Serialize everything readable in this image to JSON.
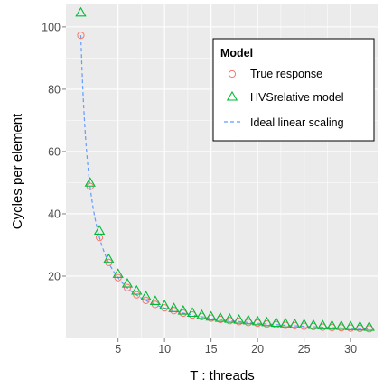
{
  "chart_data": {
    "type": "scatter",
    "xlabel": "T : threads",
    "ylabel": "Cycles per element",
    "xlim": [
      -0.6,
      33.0
    ],
    "ylim": [
      0,
      107.5
    ],
    "xticks": [
      5,
      10,
      15,
      20,
      25,
      30
    ],
    "yticks": [
      20,
      40,
      60,
      80,
      100
    ],
    "grid": true,
    "legend": {
      "title": "Model",
      "placement": "top-right",
      "entries": [
        "True response",
        "HVSrelative model",
        "Ideal linear scaling"
      ]
    },
    "colors": {
      "panel_background": "#ebebeb",
      "grid": "#ffffff",
      "true_response": "#f8766d",
      "hvs_model": "#00ba38",
      "ideal_linear": "#619cff"
    },
    "series": [
      {
        "name": "True response",
        "marker": "circle",
        "x": [
          1,
          2,
          3,
          4,
          5,
          6,
          7,
          8,
          9,
          10,
          11,
          12,
          13,
          14,
          15,
          16,
          17,
          18,
          19,
          20,
          21,
          22,
          23,
          24,
          25,
          26,
          27,
          28,
          29,
          30,
          31,
          32
        ],
        "y": [
          97.3,
          48.8,
          32.4,
          24.4,
          19.5,
          16.3,
          14.0,
          12.2,
          10.9,
          9.8,
          8.9,
          8.1,
          7.5,
          7.0,
          6.5,
          6.1,
          5.7,
          5.4,
          5.1,
          4.9,
          4.6,
          4.4,
          4.2,
          4.1,
          3.9,
          3.8,
          3.6,
          3.5,
          3.4,
          3.3,
          3.2,
          3.1
        ]
      },
      {
        "name": "HVSrelative model",
        "marker": "triangle",
        "x": [
          1,
          2,
          3,
          4,
          5,
          6,
          7,
          8,
          9,
          10,
          11,
          12,
          13,
          14,
          15,
          16,
          17,
          18,
          19,
          20,
          21,
          22,
          23,
          24,
          25,
          26,
          27,
          28,
          29,
          30,
          31,
          32
        ],
        "y": [
          104.6,
          50.0,
          34.6,
          25.5,
          20.7,
          17.6,
          15.3,
          13.5,
          12.0,
          10.6,
          9.7,
          8.9,
          8.2,
          7.5,
          7.0,
          6.6,
          6.3,
          6.0,
          5.8,
          5.5,
          5.2,
          5.0,
          4.8,
          4.6,
          4.5,
          4.3,
          4.2,
          4.1,
          4.0,
          3.9,
          3.8,
          3.7
        ]
      },
      {
        "name": "Ideal linear scaling",
        "marker": "dashed-line",
        "function": "97.3 / T",
        "x_range": [
          1,
          32
        ]
      }
    ]
  }
}
